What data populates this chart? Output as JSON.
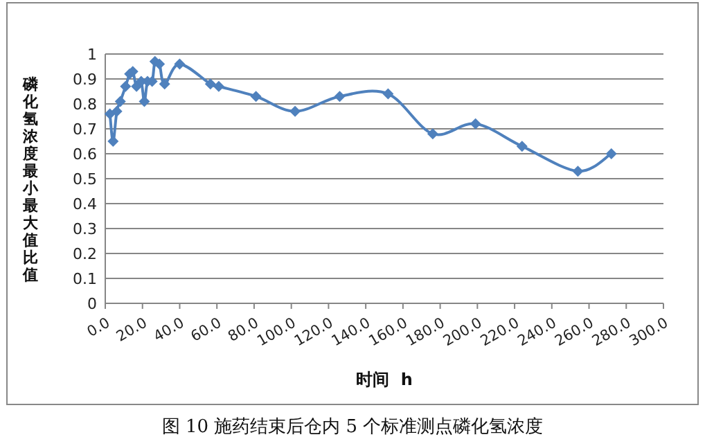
{
  "chart_data": {
    "type": "line",
    "title": "图 10 施药结束后仓内 5 个标准测点磷化氢浓度",
    "xlabel": "时间  h",
    "ylabel": "磷化氢浓度最小最大值比值",
    "x": [
      2.5,
      4.2,
      6.2,
      8.1,
      10.9,
      13.1,
      14.8,
      16.8,
      19.3,
      21,
      22.7,
      25.2,
      26.7,
      29.1,
      31.9,
      40,
      56.5,
      61,
      81,
      102,
      126,
      152,
      176,
      199,
      224,
      254,
      272
    ],
    "series": [
      {
        "color": "#4f81bd",
        "values": [
          0.76,
          0.65,
          0.77,
          0.81,
          0.87,
          0.92,
          0.93,
          0.87,
          0.89,
          0.81,
          0.89,
          0.89,
          0.97,
          0.96,
          0.88,
          0.96,
          0.88,
          0.87,
          0.83,
          0.77,
          0.83,
          0.84,
          0.68,
          0.72,
          0.63,
          0.53,
          0.6
        ]
      }
    ],
    "xlim": [
      0,
      300
    ],
    "ylim": [
      0,
      1
    ],
    "xticks": [
      {
        "value": 0,
        "label": "0.0"
      },
      {
        "value": 20,
        "label": "20.0"
      },
      {
        "value": 40,
        "label": "40.0"
      },
      {
        "value": 60,
        "label": "60.0"
      },
      {
        "value": 80,
        "label": "80.0"
      },
      {
        "value": 100,
        "label": "100.0"
      },
      {
        "value": 120,
        "label": "120.0"
      },
      {
        "value": 140,
        "label": "140.0"
      },
      {
        "value": 160,
        "label": "160.0"
      },
      {
        "value": 180,
        "label": "180.0"
      },
      {
        "value": 200,
        "label": "200.0"
      },
      {
        "value": 220,
        "label": "220.0"
      },
      {
        "value": 240,
        "label": "240.0"
      },
      {
        "value": 260,
        "label": "260.0"
      },
      {
        "value": 280,
        "label": "280.0"
      },
      {
        "value": 300,
        "label": "300.0"
      }
    ],
    "yticks": [
      0,
      0.1,
      0.2,
      0.3,
      0.4,
      0.5,
      0.6,
      0.7,
      0.8,
      0.9,
      1
    ],
    "grid": "y",
    "marker": "diamond",
    "line_style": "solid"
  }
}
